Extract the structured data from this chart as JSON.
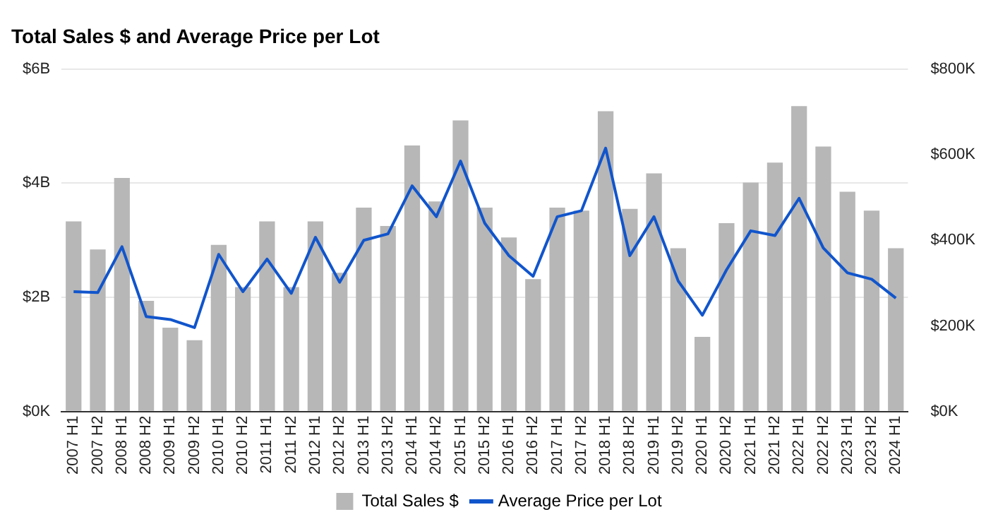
{
  "chart_data": {
    "type": "bar",
    "title": "Total Sales $ and Average Price per Lot",
    "categories": [
      "2007 H1",
      "2007 H2",
      "2008 H1",
      "2008 H2",
      "2009 H1",
      "2009 H2",
      "2010 H1",
      "2010 H2",
      "2011 H1",
      "2011 H2",
      "2012 H1",
      "2012 H2",
      "2013 H1",
      "2013 H2",
      "2014 H1",
      "2014 H2",
      "2015 H1",
      "2015 H2",
      "2016 H1",
      "2016 H2",
      "2017 H1",
      "2017 H2",
      "2018 H1",
      "2018 H2",
      "2019 H1",
      "2019 H2",
      "2020 H1",
      "2020 H2",
      "2021 H1",
      "2021 H2",
      "2022 H1",
      "2022 H2",
      "2023 H1",
      "2023 H2",
      "2024 H1"
    ],
    "series": [
      {
        "name": "Total Sales $",
        "color": "#b7b7b7",
        "values": [
          3.33,
          2.84,
          4.09,
          1.94,
          1.47,
          1.25,
          2.92,
          2.18,
          3.33,
          2.18,
          3.33,
          2.43,
          3.57,
          3.25,
          4.66,
          3.68,
          5.1,
          3.57,
          3.05,
          2.32,
          3.57,
          3.52,
          5.26,
          3.55,
          4.17,
          2.86,
          1.31,
          3.3,
          4.01,
          4.36,
          5.35,
          4.64,
          3.85,
          3.52,
          2.86
        ]
      },
      {
        "name": "Average Price per Lot",
        "type": "line",
        "axis": "y2",
        "color": "#1155cc",
        "values": [
          280,
          278,
          385,
          222,
          215,
          196,
          367,
          280,
          356,
          276,
          407,
          302,
          400,
          415,
          527,
          455,
          585,
          440,
          364,
          316,
          455,
          469,
          615,
          364,
          455,
          305,
          225,
          331,
          422,
          411,
          498,
          382,
          324,
          309,
          265
        ]
      }
    ],
    "ylim": [
      0,
      6
    ],
    "yticks": [
      {
        "value": 0,
        "label": "$0K"
      },
      {
        "value": 2,
        "label": "$2B"
      },
      {
        "value": 4,
        "label": "$4B"
      },
      {
        "value": 6,
        "label": "$6B"
      }
    ],
    "y2lim": [
      0,
      800
    ],
    "y2ticks": [
      {
        "value": 0,
        "label": "$0K"
      },
      {
        "value": 200,
        "label": "$200K"
      },
      {
        "value": 400,
        "label": "$400K"
      },
      {
        "value": 600,
        "label": "$600K"
      },
      {
        "value": 800,
        "label": "$800K"
      }
    ],
    "grid": "y",
    "legend": "bottom",
    "marker": "none"
  }
}
